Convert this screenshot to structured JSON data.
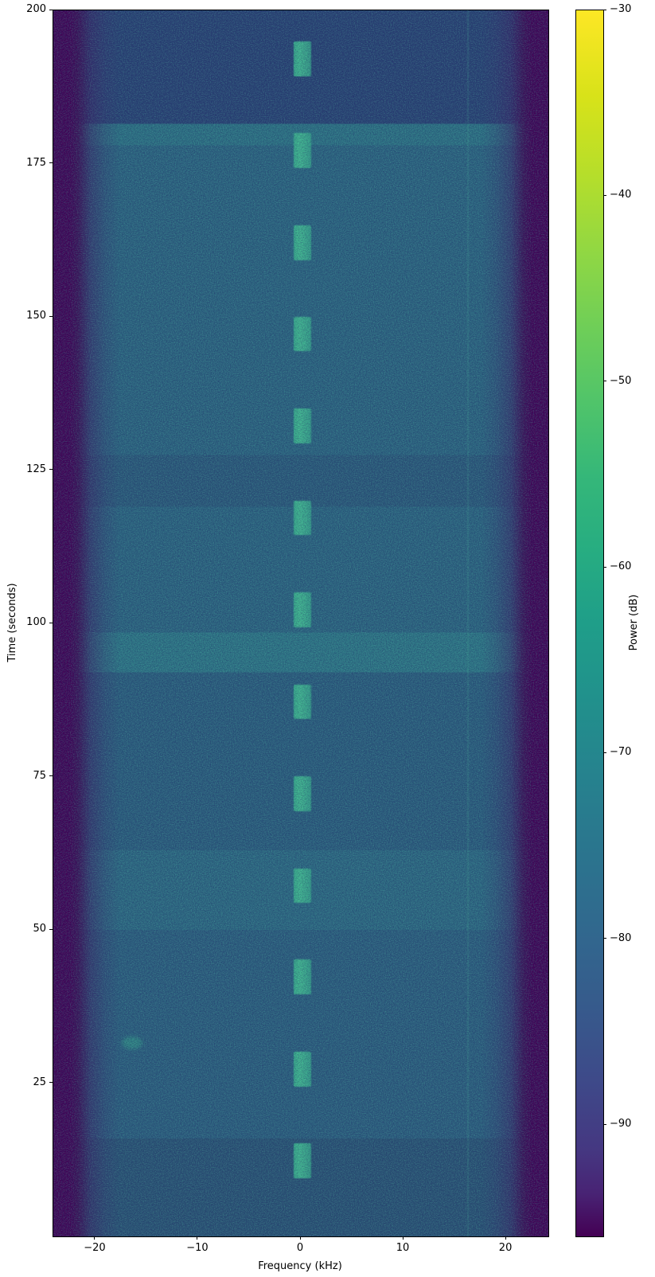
{
  "figure": {
    "background_color": "#ffffff",
    "kind": "matplotlib-spectrogram-figure"
  },
  "chart_data": {
    "type": "heatmap",
    "subtype": "spectrogram-waterfall",
    "title": "",
    "xlabel": "Frequency (kHz)",
    "ylabel": "Time (seconds)",
    "xlim": [
      -24.1,
      24.1
    ],
    "ylim": [
      0,
      200
    ],
    "x_ticks": [
      -20,
      -10,
      0,
      10,
      20
    ],
    "y_ticks": [
      25,
      50,
      75,
      100,
      125,
      150,
      175,
      200
    ],
    "grid": false,
    "colormap": "viridis",
    "colorbar": {
      "label": "Power (dB)",
      "position": "right",
      "clim": [
        -96,
        -30
      ],
      "ticks": [
        -30,
        -40,
        -50,
        -60,
        -70,
        -80,
        -90
      ]
    },
    "noise_floor": {
      "center_power_db": -72,
      "band_edge_power_db": -95,
      "edge_rolloff_start_khz": 21.5,
      "description": "passband noise floor with dark viridis-purple roll-off at both band edges"
    },
    "time_bands": [
      {
        "t_range": [
          0,
          16
        ],
        "mean_db": -74.0,
        "tint": "#2b5374"
      },
      {
        "t_range": [
          16,
          50
        ],
        "mean_db": -72.5,
        "tint": "#2d5f7e"
      },
      {
        "t_range": [
          50,
          63
        ],
        "mean_db": -71.0,
        "tint": "#2e6a82"
      },
      {
        "t_range": [
          63,
          92
        ],
        "mean_db": -72.5,
        "tint": "#2c5e7d"
      },
      {
        "t_range": [
          92,
          98.5
        ],
        "mean_db": -70.0,
        "tint": "#2f7886"
      },
      {
        "t_range": [
          98.5,
          119
        ],
        "mean_db": -72.0,
        "tint": "#2d6580"
      },
      {
        "t_range": [
          119,
          127.5
        ],
        "mean_db": -73.5,
        "tint": "#2c5a7a"
      },
      {
        "t_range": [
          127.5,
          178
        ],
        "mean_db": -72.0,
        "tint": "#2d6580"
      },
      {
        "t_range": [
          178,
          181.5
        ],
        "mean_db": -70.5,
        "tint": "#2e7384"
      },
      {
        "t_range": [
          181.5,
          200
        ],
        "mean_db": -77.0,
        "tint": "#2a4273"
      }
    ],
    "bursts": {
      "description": "periodic narrowband transmissions centered near 0 kHz",
      "freq_range_khz": [
        -0.7,
        1.0
      ],
      "duration_s": 5.7,
      "period_s": 15.0,
      "power_db": -55,
      "color": "#3ab18c",
      "center_times_s": [
        12.3,
        27.3,
        42.3,
        57.2,
        72.2,
        87.2,
        102.2,
        117.2,
        132.2,
        147.2,
        162.1,
        177.1,
        192.1
      ]
    },
    "artifacts": [
      {
        "kind": "faint-blob",
        "freq_khz": -16.4,
        "time_s": 31.5,
        "power_db": -65,
        "color": "#37a98a"
      },
      {
        "kind": "faint-carrier-line",
        "freq_khz": 16.3,
        "time_range_s": [
          0,
          200
        ],
        "power_db": -70,
        "color": "#4fc2a0"
      }
    ],
    "palette": {
      "viridis_min": "#440154",
      "viridis_mid": "#21918c",
      "viridis_max": "#fde725",
      "background_mid": "#2d6380",
      "noise_speckle_dark": "#1b2464",
      "noise_speckle_light": "#63d6b2"
    }
  }
}
